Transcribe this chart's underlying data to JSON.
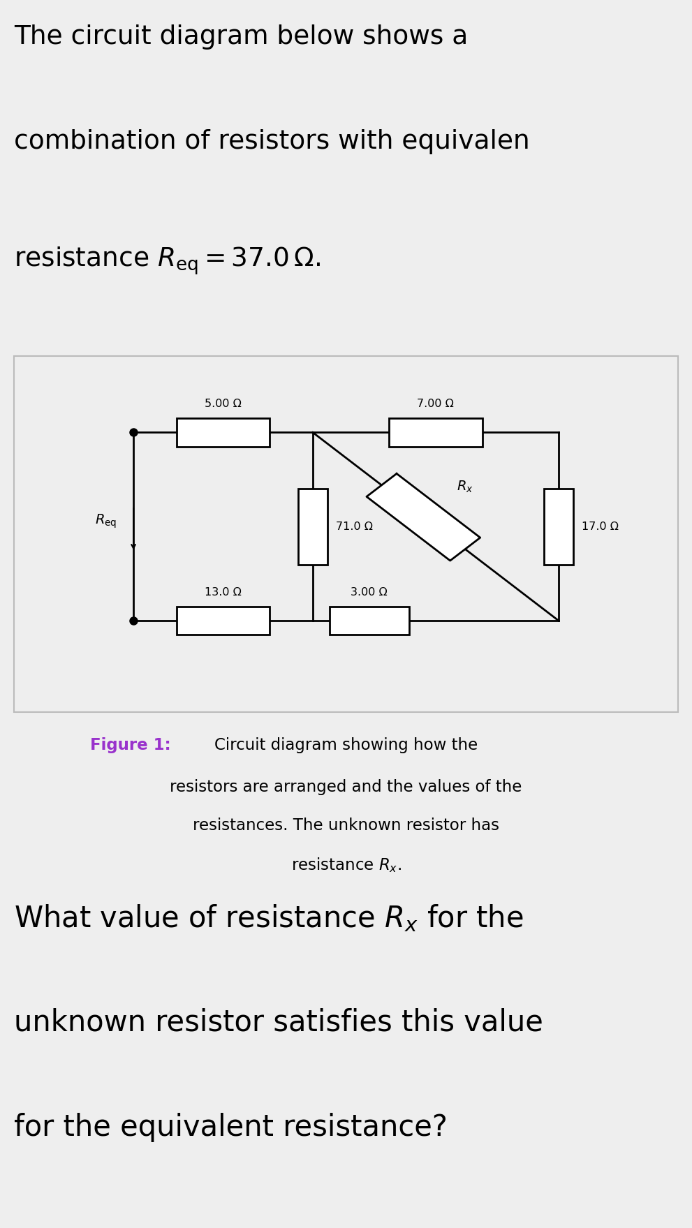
{
  "bg_gray": "#eeeeee",
  "bg_white": "#ffffff",
  "text_color": "#000000",
  "purple_color": "#9932CC",
  "line_color": "#000000",
  "line_width": 2.0,
  "title_line1": "The circuit diagram below shows a",
  "title_line2": "combination of resistors with equivalen",
  "title_line3": "resistance $R_{\\mathrm{eq}} = 37.0\\,\\Omega$.",
  "caption_fig": "Figure 1:",
  "caption_text1": "Circuit diagram showing how the",
  "caption_text2": "resistors are arranged and the values of the",
  "caption_text3": "resistances. The unknown resistor has",
  "caption_text4": "resistance $R_x$.",
  "question_line1": "What value of resistance $R_x$ for the",
  "question_line2": "unknown resistor satisfies this value",
  "question_line3": "for the equivalent resistance?",
  "r_top_left": "5.00 Ω",
  "r_top_right": "7.00 Ω",
  "r_bot_left": "13.0 Ω",
  "r_bot_right": "3.00 Ω",
  "r_mid_vert": "71.0 Ω",
  "r_right_vert": "17.0 Ω",
  "r_eq_label": "$R_{\\mathrm{eq}}$",
  "r_x_label": "$R_x$"
}
